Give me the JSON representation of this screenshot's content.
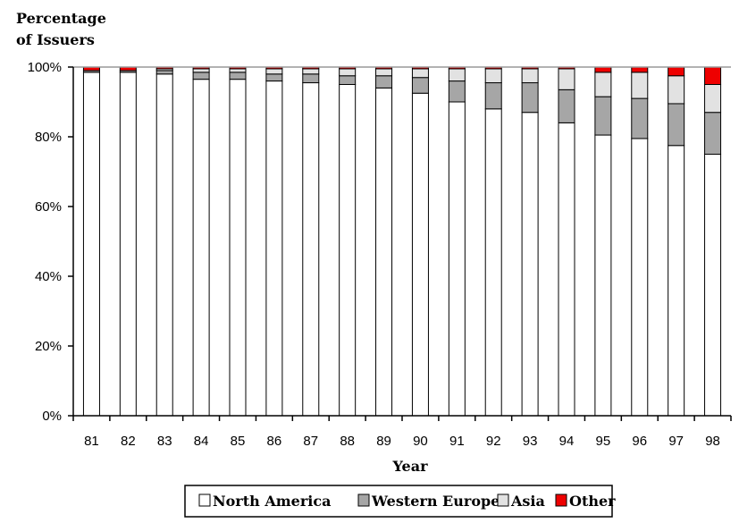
{
  "chart_data": {
    "type": "bar",
    "stacked": true,
    "ylabel": "Percentage of Issuers",
    "ylabel_lines": [
      "Percentage",
      "of Issuers"
    ],
    "xlabel": "Year",
    "categories": [
      "81",
      "82",
      "83",
      "84",
      "85",
      "86",
      "87",
      "88",
      "89",
      "90",
      "91",
      "92",
      "93",
      "94",
      "95",
      "96",
      "97",
      "98"
    ],
    "ylim": [
      0,
      100
    ],
    "yticks": [
      0,
      20,
      40,
      60,
      80,
      100
    ],
    "ytick_labels": [
      "0%",
      "20%",
      "40%",
      "60%",
      "80%",
      "100%"
    ],
    "grid": false,
    "legend_position": "bottom",
    "series": [
      {
        "name": "North America",
        "color": "#ffffff",
        "values": [
          98.5,
          98.5,
          98,
          96.5,
          96.5,
          96,
          95.5,
          95,
          94,
          92.5,
          90,
          88,
          87,
          84,
          80.5,
          79.5,
          77.5,
          75
        ]
      },
      {
        "name": "Western Europe",
        "color": "#a6a6a6",
        "values": [
          0.5,
          0.5,
          1,
          2,
          2,
          2,
          2.5,
          2.5,
          3.5,
          4.5,
          6,
          7.5,
          8.5,
          9.5,
          11,
          11.5,
          12,
          12
        ]
      },
      {
        "name": "Asia",
        "color": "#e2e2e2",
        "values": [
          0,
          0,
          0.5,
          1,
          1,
          1.5,
          1.5,
          2,
          2,
          2.5,
          3.5,
          4,
          4,
          6,
          7,
          7.5,
          8,
          8
        ]
      },
      {
        "name": "Other",
        "color": "#ee0000",
        "values": [
          1,
          1,
          0.5,
          0.5,
          0.5,
          0.5,
          0.5,
          0.5,
          0.5,
          0.5,
          0.5,
          0.5,
          0.5,
          0.5,
          1.5,
          1.5,
          2.5,
          5
        ]
      }
    ]
  }
}
